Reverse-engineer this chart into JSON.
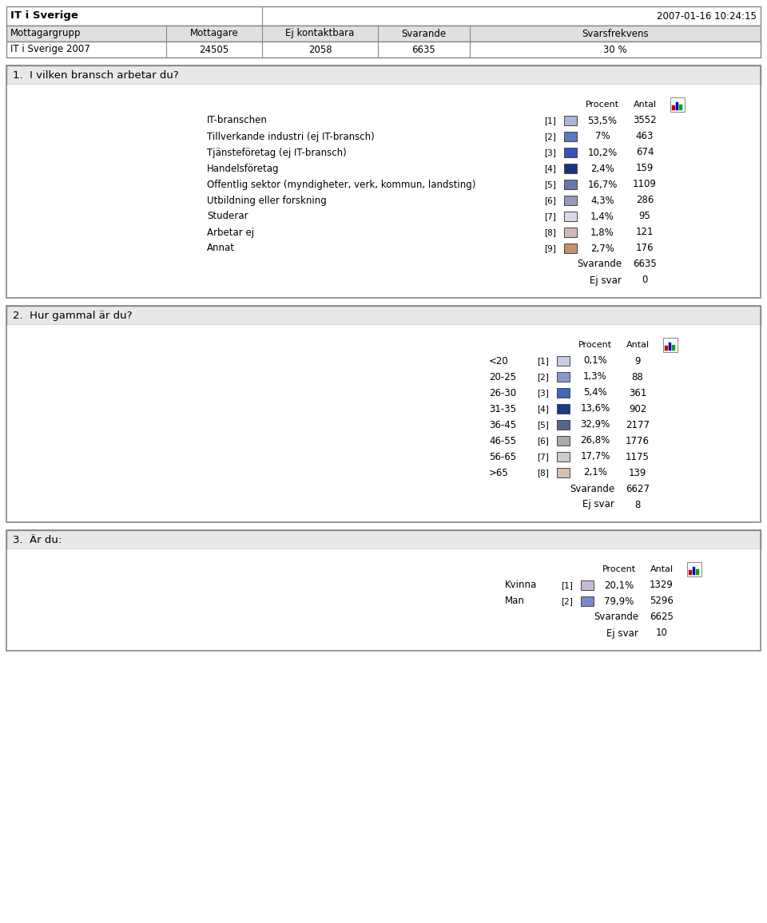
{
  "header_title": "IT i Sverige",
  "header_date": "2007-01-16 10:24:15",
  "header_cols": [
    "Mottagargrupp",
    "Mottagare",
    "Ej kontaktbara",
    "Svarande",
    "Svarsfrekvens"
  ],
  "header_row": [
    "IT i Sverige 2007",
    "24505",
    "2058",
    "6635",
    "30 %"
  ],
  "q1_title": "1.  I vilken bransch arbetar du?",
  "q1_rows": [
    {
      "label": "IT-branschen",
      "num": "[1]",
      "color": "#aab4d4",
      "pct": "53,5%",
      "antal": "3552"
    },
    {
      "label": "Tillverkande industri (ej IT-bransch)",
      "num": "[2]",
      "color": "#5a7abf",
      "pct": "7%",
      "antal": "463"
    },
    {
      "label": "Tjänsteföretag (ej IT-bransch)",
      "num": "[3]",
      "color": "#3355bb",
      "pct": "10,2%",
      "antal": "674"
    },
    {
      "label": "Handelsföretag",
      "num": "[4]",
      "color": "#1a3480",
      "pct": "2,4%",
      "antal": "159"
    },
    {
      "label": "Offentlig sektor (myndigheter, verk, kommun, landsting)",
      "num": "[5]",
      "color": "#6677aa",
      "pct": "16,7%",
      "antal": "1109"
    },
    {
      "label": "Utbildning eller forskning",
      "num": "[6]",
      "color": "#9999bb",
      "pct": "4,3%",
      "antal": "286"
    },
    {
      "label": "Studerar",
      "num": "[7]",
      "color": "#d8dae8",
      "pct": "1,4%",
      "antal": "95"
    },
    {
      "label": "Arbetar ej",
      "num": "[8]",
      "color": "#d4b8b8",
      "pct": "1,8%",
      "antal": "121"
    },
    {
      "label": "Annat",
      "num": "[9]",
      "color": "#c8906a",
      "pct": "2,7%",
      "antal": "176"
    }
  ],
  "q1_svarande": "6635",
  "q1_ejsvar": "0",
  "q2_title": "2.  Hur gammal är du?",
  "q2_rows": [
    {
      "label": "<20",
      "num": "[1]",
      "color": "#c8cce8",
      "pct": "0,1%",
      "antal": "9"
    },
    {
      "label": "20-25",
      "num": "[2]",
      "color": "#8899cc",
      "pct": "1,3%",
      "antal": "88"
    },
    {
      "label": "26-30",
      "num": "[3]",
      "color": "#4466bb",
      "pct": "5,4%",
      "antal": "361"
    },
    {
      "label": "31-35",
      "num": "[4]",
      "color": "#1a3a8a",
      "pct": "13,6%",
      "antal": "902"
    },
    {
      "label": "36-45",
      "num": "[5]",
      "color": "#556688",
      "pct": "32,9%",
      "antal": "2177"
    },
    {
      "label": "46-55",
      "num": "[6]",
      "color": "#aaaaaa",
      "pct": "26,8%",
      "antal": "1776"
    },
    {
      "label": "56-65",
      "num": "[7]",
      "color": "#cccccc",
      "pct": "17,7%",
      "antal": "1175"
    },
    {
      "label": ">65",
      "num": "[8]",
      "color": "#d4bfb0",
      "pct": "2,1%",
      "antal": "139"
    }
  ],
  "q2_svarande": "6627",
  "q2_ejsvar": "8",
  "q3_title": "3.  Är du:",
  "q3_rows": [
    {
      "label": "Kvinna",
      "num": "[1]",
      "color": "#c8b8d8",
      "pct": "20,1%",
      "antal": "1329"
    },
    {
      "label": "Man",
      "num": "[2]",
      "color": "#7788cc",
      "pct": "79,9%",
      "antal": "5296"
    }
  ],
  "q3_svarande": "6625",
  "q3_ejsvar": "10"
}
